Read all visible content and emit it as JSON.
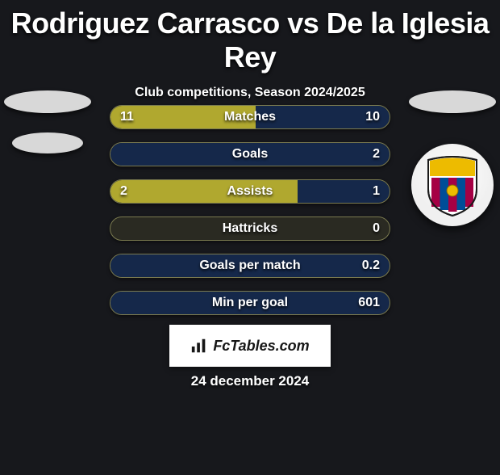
{
  "header": {
    "title": "Rodriguez Carrasco vs De la Iglesia Rey",
    "subtitle": "Club competitions, Season 2024/2025"
  },
  "colors": {
    "left_bar": "#b0a82f",
    "right_bar": "#15284a",
    "bar_track": "#2a2a22",
    "bar_border": "#7a7a50",
    "background": "#17181c",
    "text": "#ffffff"
  },
  "stats": [
    {
      "label": "Matches",
      "left_value": "11",
      "right_value": "10",
      "left_pct": 52,
      "right_pct": 48
    },
    {
      "label": "Goals",
      "left_value": "",
      "right_value": "2",
      "left_pct": 0,
      "right_pct": 100
    },
    {
      "label": "Assists",
      "left_value": "2",
      "right_value": "1",
      "left_pct": 67,
      "right_pct": 33
    },
    {
      "label": "Hattricks",
      "left_value": "",
      "right_value": "0",
      "left_pct": 0,
      "right_pct": 0
    },
    {
      "label": "Goals per match",
      "left_value": "",
      "right_value": "0.2",
      "left_pct": 0,
      "right_pct": 100
    },
    {
      "label": "Min per goal",
      "left_value": "",
      "right_value": "601",
      "left_pct": 0,
      "right_pct": 100
    }
  ],
  "footer": {
    "brand": "FcTables.com",
    "date": "24 december 2024"
  },
  "club_badge": {
    "name": "club-crest",
    "stripes": [
      "#a50044",
      "#004d98"
    ],
    "top": "#edbb00"
  }
}
